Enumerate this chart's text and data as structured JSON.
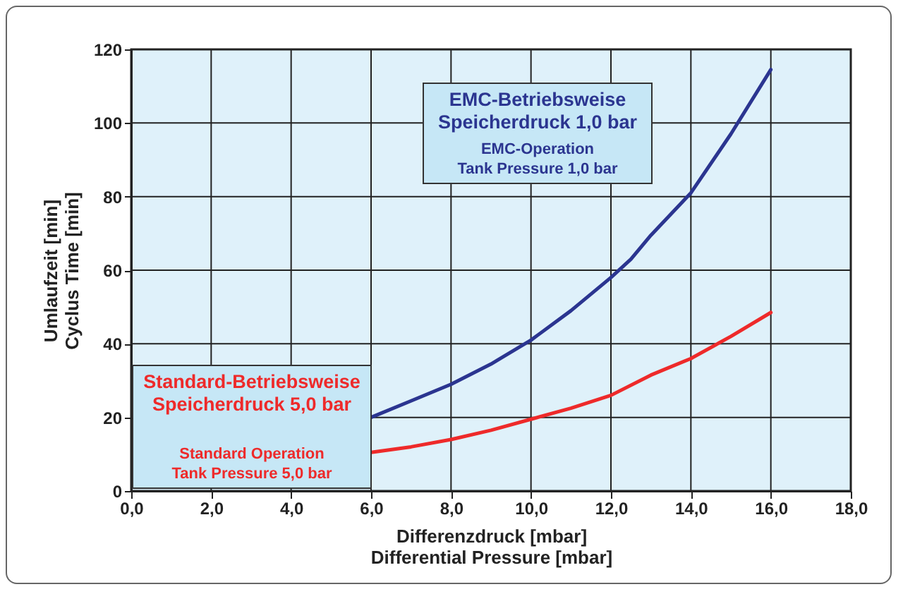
{
  "chart_data": {
    "type": "line",
    "xlabel": "Differenzdruck [mbar]\nDifferential Pressure [mbar]",
    "ylabel": "Umlaufzeit [min]\nCyclus Time [min]",
    "xlim": [
      0,
      18
    ],
    "xticks": [
      {
        "value": 0,
        "label": "0,0"
      },
      {
        "value": 2,
        "label": "2,0"
      },
      {
        "value": 4,
        "label": "4,0"
      },
      {
        "value": 6,
        "label": "6,0"
      },
      {
        "value": 8,
        "label": "8,0"
      },
      {
        "value": 10,
        "label": "10,0"
      },
      {
        "value": 12,
        "label": "12,0"
      },
      {
        "value": 14,
        "label": "14,0"
      },
      {
        "value": 16,
        "label": "16,0"
      },
      {
        "value": 18,
        "label": "18,0"
      }
    ],
    "ylim": [
      0,
      120
    ],
    "yticks": [
      0,
      20,
      40,
      60,
      80,
      100,
      120
    ],
    "grid": true,
    "annotations": [
      "EMC-Betriebsweise\nSpeicherdruck 1,0 bar",
      "EMC-Operation\nTank Pressure 1,0 bar",
      "Standard-Betriebsweise\nSpeicherdruck 5,0 bar",
      "Standard Operation\nTank Pressure 5,0 bar"
    ],
    "series": [
      {
        "color": "#2b3590",
        "x": [
          6,
          7,
          8,
          9,
          10,
          11,
          12,
          12.5,
          13,
          14,
          15,
          16
        ],
        "values": [
          20,
          24.5,
          29,
          34.5,
          41,
          49,
          58,
          63,
          69.5,
          81,
          97,
          114.5
        ]
      },
      {
        "color": "#ee2a2a",
        "x": [
          6,
          7,
          8,
          9,
          10,
          11,
          12,
          13,
          14,
          15,
          16
        ],
        "values": [
          10.5,
          12,
          14,
          16.5,
          19.5,
          22.5,
          26,
          31.5,
          36,
          42,
          48.5
        ]
      }
    ]
  }
}
